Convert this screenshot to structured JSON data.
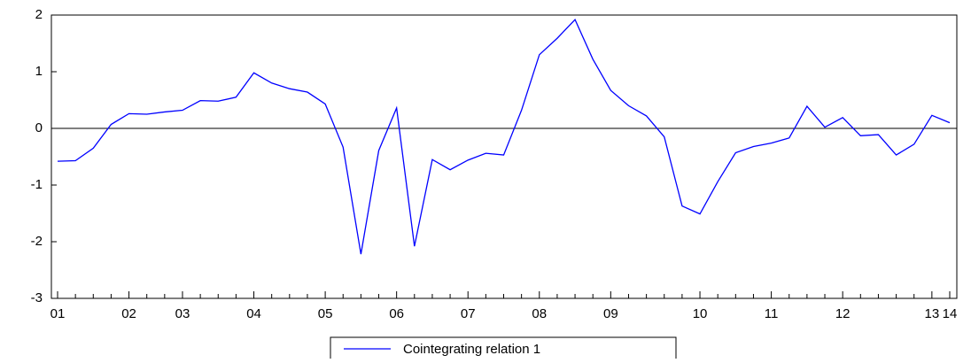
{
  "chart_data": {
    "type": "line",
    "categories": [
      "01",
      null,
      null,
      null,
      "02",
      null,
      null,
      "03",
      null,
      null,
      null,
      "04",
      null,
      null,
      null,
      "05",
      null,
      null,
      null,
      "06",
      null,
      null,
      null,
      "07",
      null,
      null,
      null,
      "08",
      null,
      null,
      null,
      "09",
      null,
      null,
      null,
      null,
      "10",
      null,
      null,
      null,
      "11",
      null,
      null,
      null,
      "12",
      null,
      null,
      null,
      null,
      "13",
      "14"
    ],
    "series": [
      {
        "name": "Cointegrating relation 1",
        "color": "#0000ff",
        "values": [
          -0.58,
          -0.57,
          -0.35,
          0.07,
          0.26,
          0.25,
          0.29,
          0.32,
          0.49,
          0.48,
          0.55,
          0.98,
          0.8,
          0.7,
          0.64,
          0.43,
          -0.33,
          -2.22,
          -0.39,
          0.36,
          -2.08,
          -0.55,
          -0.73,
          -0.56,
          -0.44,
          -0.47,
          0.32,
          1.3,
          1.59,
          1.92,
          1.22,
          0.67,
          0.4,
          0.22,
          -0.15,
          -1.37,
          -1.51,
          -0.94,
          -0.43,
          -0.32,
          -0.26,
          -0.17,
          0.39,
          0.02,
          0.19,
          -0.13,
          -0.11,
          -0.47,
          -0.28,
          0.23,
          0.1
        ]
      }
    ],
    "ylim": [
      -3,
      2
    ],
    "yticks": [
      -3,
      -2,
      -1,
      0,
      1,
      2
    ],
    "zero_line": true,
    "legend": "bottom"
  }
}
